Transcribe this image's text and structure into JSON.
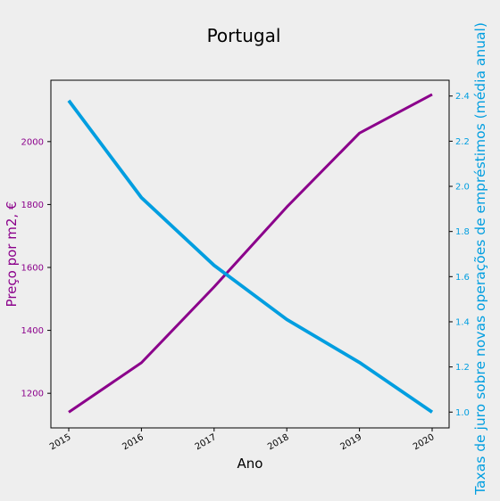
{
  "chart_data": {
    "type": "line",
    "title": "Portugal",
    "xlabel": "Ano",
    "ylabel_left": "Preço por m2, €",
    "ylabel_right": "Taxas de juro sobre novas operações de empréstimos (média anual)",
    "x": [
      "2015",
      "2016",
      "2017",
      "2018",
      "2019",
      "2020"
    ],
    "series": [
      {
        "axis": "left",
        "color": "#8b008b",
        "values": [
          1140,
          1297,
          1538,
          1792,
          2027,
          2150
        ]
      },
      {
        "axis": "right",
        "color": "#009ee0",
        "values": [
          2.38,
          1.95,
          1.65,
          1.41,
          1.22,
          1.0
        ]
      }
    ],
    "ylim_left": [
      1090,
      2195
    ],
    "ylim_right": [
      0.93,
      2.47
    ],
    "yticks_left": [
      "1200",
      "1400",
      "1600",
      "1800",
      "2000"
    ],
    "yticks_right": [
      "1.0",
      "1.2",
      "1.4",
      "1.6",
      "1.8",
      "2.0",
      "2.2",
      "2.4"
    ],
    "grid": false,
    "left_axis_color": "#8b008b",
    "right_axis_color": "#009ee0"
  }
}
